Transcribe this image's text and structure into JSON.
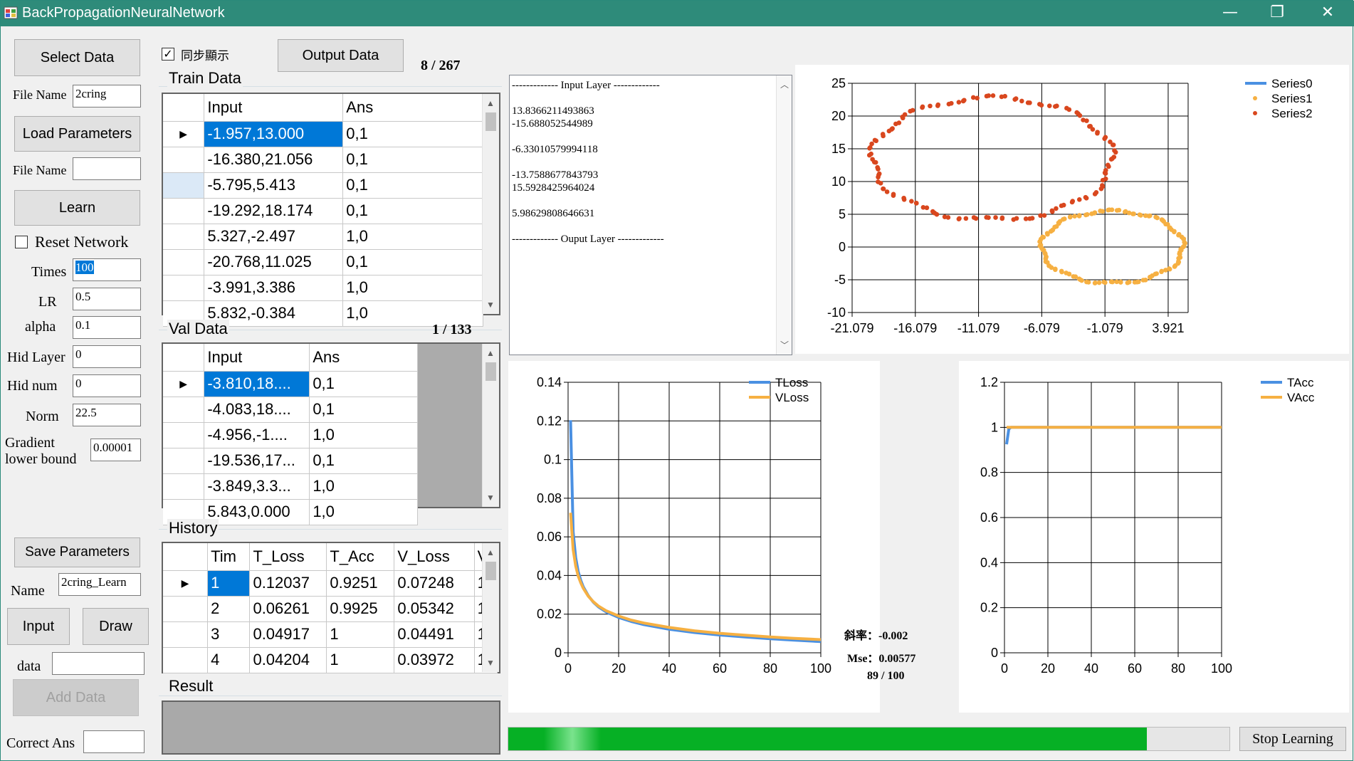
{
  "window": {
    "title": "BackPropagationNeuralNetwork",
    "minimize_glyph": "—",
    "restore_glyph": "❐",
    "close_glyph": "✕"
  },
  "left": {
    "select_data": "Select Data",
    "file_name_label": "File Name",
    "file_name_value": "2cring",
    "load_parameters": "Load Parameters",
    "file_name2_label": "File Name",
    "file_name2_value": "",
    "learn": "Learn",
    "reset_network": "Reset Network",
    "reset_checked": false,
    "fields": [
      {
        "label": "Times",
        "value": "100"
      },
      {
        "label": "LR",
        "value": "0.5"
      },
      {
        "label": "alpha",
        "value": "0.1"
      },
      {
        "label": "Hid Layer",
        "value": "0"
      },
      {
        "label": "Hid num",
        "value": "0"
      },
      {
        "label": "Norm",
        "value": "22.5"
      }
    ],
    "gradient_label_1": "Gradient",
    "gradient_label_2": "lower bound",
    "gradient_value": "0.00001",
    "save_parameters": "Save Parameters",
    "name_label": "Name",
    "name_value": "2cring_Learn",
    "input_btn": "Input",
    "draw_btn": "Draw",
    "data_label": "data",
    "data_value": "",
    "add_data": "Add Data",
    "correct_label": "Correct Ans",
    "correct_value": ""
  },
  "top": {
    "sync_label": "同步顯示",
    "sync_checked": true,
    "output_data": "Output Data",
    "train_counter": "8 / 267"
  },
  "train": {
    "title": "Train Data",
    "headers": [
      "Input",
      "Ans"
    ],
    "rows": [
      [
        "-1.957,13.000",
        "0,1"
      ],
      [
        "-16.380,21.056",
        "0,1"
      ],
      [
        "-5.795,5.413",
        "0,1"
      ],
      [
        "-19.292,18.174",
        "0,1"
      ],
      [
        "5.327,-2.497",
        "1,0"
      ],
      [
        "-20.768,11.025",
        "0,1"
      ],
      [
        "-3.991,3.386",
        "1,0"
      ],
      [
        "5.832,-0.384",
        "1,0"
      ]
    ]
  },
  "val": {
    "title": "Val Data",
    "counter": "1 / 133",
    "headers": [
      "Input",
      "Ans"
    ],
    "rows": [
      [
        "-3.810,18....",
        "0,1"
      ],
      [
        "-4.083,18....",
        "0,1"
      ],
      [
        "-4.956,-1....",
        "1,0"
      ],
      [
        "-19.536,17...",
        "0,1"
      ],
      [
        "-3.849,3.3...",
        "1,0"
      ],
      [
        "5.843,0.000",
        "1,0"
      ]
    ]
  },
  "history": {
    "title": "History",
    "headers": [
      "Tim",
      "T_Loss",
      "T_Acc",
      "V_Loss",
      "V"
    ],
    "rows": [
      [
        "1",
        "0.12037",
        "0.9251",
        "0.07248",
        "1"
      ],
      [
        "2",
        "0.06261",
        "0.9925",
        "0.05342",
        "1"
      ],
      [
        "3",
        "0.04917",
        "1",
        "0.04491",
        "1"
      ],
      [
        "4",
        "0.04204",
        "1",
        "0.03972",
        "1"
      ]
    ]
  },
  "result": {
    "title": "Result"
  },
  "weights_text": {
    "lines": [
      "------------- Input Layer -------------",
      "",
      "13.8366211493863",
      "-15.688052544989",
      "",
      "-6.33010579994118",
      "",
      "-13.7588677843793",
      "15.5928425964024",
      "",
      "5.98629808646631",
      "",
      "------------- Ouput Layer -------------"
    ]
  },
  "loss_stats": {
    "slope": "斜率：-0.002",
    "mse": "Mse：0.00577",
    "progress": "89 / 100"
  },
  "bottom": {
    "stop_learning": "Stop Learning",
    "progress_fraction": 0.885
  },
  "chart_data": [
    {
      "type": "scatter",
      "title": "",
      "xlabel": "",
      "ylabel": "",
      "xticks": [
        "-21.079",
        "-16.079",
        "-11.079",
        "-6.079",
        "-1.079",
        "3.921"
      ],
      "xlim": [
        -21.079,
        5.5
      ],
      "ylim": [
        -10,
        25
      ],
      "yticks": [
        -10,
        -5,
        0,
        5,
        10,
        15,
        20,
        25
      ],
      "grid": true,
      "legend": "top-right",
      "series": [
        {
          "name": "Series0",
          "color": "#4a90e2",
          "points": []
        },
        {
          "name": "Series1",
          "color": "#f6b042",
          "ring": {
            "cx": -0.5,
            "cy": 0,
            "rx": 5.6,
            "ry": 5.5
          },
          "points_count": 133
        },
        {
          "name": "Series2",
          "color": "#d9471e",
          "ring": {
            "cx": -10,
            "cy": 13.5,
            "rx": 9.5,
            "ry": 9.3
          },
          "points_count": 134
        }
      ]
    },
    {
      "type": "line",
      "title": "",
      "xlabel": "",
      "ylabel": "",
      "xlim": [
        0,
        100
      ],
      "ylim": [
        0,
        0.14
      ],
      "xticks": [
        0,
        20,
        40,
        60,
        80,
        100
      ],
      "yticks": [
        0,
        0.02,
        0.04,
        0.06,
        0.08,
        0.1,
        0.12,
        0.14
      ],
      "ytick_labels": [
        "0",
        "0.02",
        "0.04",
        "0.06",
        "0.08",
        "0.1",
        "0.12",
        "0.14"
      ],
      "grid": true,
      "legend": "top-right",
      "x": [
        1,
        2,
        3,
        4,
        5,
        6,
        8,
        10,
        12,
        15,
        20,
        25,
        30,
        40,
        50,
        60,
        70,
        80,
        89,
        100
      ],
      "series": [
        {
          "name": "TLoss",
          "color": "#4a90e2",
          "values": [
            0.12037,
            0.06261,
            0.04917,
            0.04204,
            0.0375,
            0.0342,
            0.0295,
            0.0262,
            0.0238,
            0.0212,
            0.0183,
            0.0162,
            0.0146,
            0.0122,
            0.0105,
            0.0092,
            0.0082,
            0.0073,
            0.0066,
            0.0058
          ]
        },
        {
          "name": "VLoss",
          "color": "#f6b042",
          "values": [
            0.07248,
            0.05342,
            0.04491,
            0.03972,
            0.0362,
            0.0334,
            0.0293,
            0.0264,
            0.0242,
            0.0218,
            0.019,
            0.0169,
            0.0154,
            0.0131,
            0.0114,
            0.0101,
            0.0091,
            0.0082,
            0.0075,
            0.0068
          ]
        }
      ]
    },
    {
      "type": "line",
      "title": "",
      "xlabel": "",
      "ylabel": "",
      "xlim": [
        0,
        100
      ],
      "ylim": [
        0,
        1.2
      ],
      "xticks": [
        0,
        20,
        40,
        60,
        80,
        100
      ],
      "yticks": [
        0,
        0.2,
        0.4,
        0.6,
        0.8,
        1,
        1.2
      ],
      "ytick_labels": [
        "0",
        "0.2",
        "0.4",
        "0.6",
        "0.8",
        "1",
        "1.2"
      ],
      "grid": true,
      "legend": "top-right",
      "x": [
        1,
        2,
        3,
        4,
        100
      ],
      "series": [
        {
          "name": "TAcc",
          "color": "#4a90e2",
          "values": [
            0.9251,
            0.9925,
            1,
            1,
            1
          ]
        },
        {
          "name": "VAcc",
          "color": "#f6b042",
          "values": [
            1,
            1,
            1,
            1,
            1
          ]
        }
      ]
    }
  ]
}
